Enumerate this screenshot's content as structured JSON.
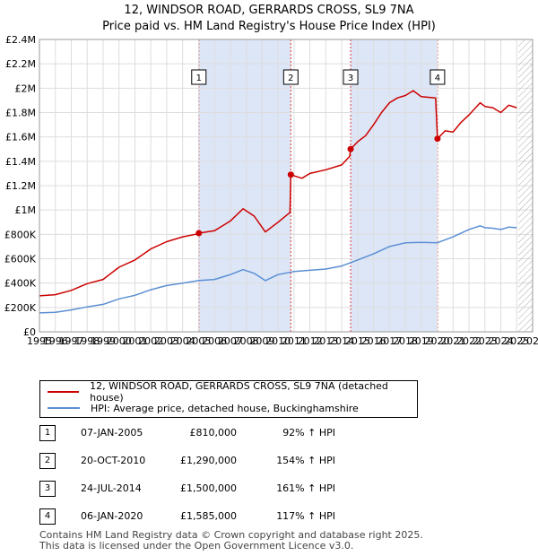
{
  "chart_data": {
    "type": "line",
    "title": "12, WINDSOR ROAD, GERRARDS CROSS, SL9 7NA",
    "subtitle": "Price paid vs. HM Land Registry's House Price Index (HPI)",
    "xlim": [
      1995,
      2026
    ],
    "ylim": [
      0,
      2400000
    ],
    "x_ticks": [
      "1995",
      "1996",
      "1997",
      "1998",
      "1999",
      "2000",
      "2001",
      "2002",
      "2003",
      "2004",
      "2005",
      "2006",
      "2007",
      "2008",
      "2009",
      "2010",
      "2011",
      "2012",
      "2013",
      "2014",
      "2015",
      "2016",
      "2017",
      "2018",
      "2019",
      "2020",
      "2021",
      "2022",
      "2023",
      "2024",
      "2025",
      "2026"
    ],
    "y_ticks": [
      {
        "value": 0,
        "label": "£0"
      },
      {
        "value": 200000,
        "label": "£200K"
      },
      {
        "value": 400000,
        "label": "£400K"
      },
      {
        "value": 600000,
        "label": "£600K"
      },
      {
        "value": 800000,
        "label": "£800K"
      },
      {
        "value": 1000000,
        "label": "£1M"
      },
      {
        "value": 1200000,
        "label": "£1.2M"
      },
      {
        "value": 1400000,
        "label": "£1.4M"
      },
      {
        "value": 1600000,
        "label": "£1.6M"
      },
      {
        "value": 1800000,
        "label": "£1.8M"
      },
      {
        "value": 2000000,
        "label": "£2M"
      },
      {
        "value": 2200000,
        "label": "£2.2M"
      },
      {
        "value": 2400000,
        "label": "£2.4M"
      }
    ],
    "shaded_ranges": [
      [
        2005.02,
        2010.8
      ],
      [
        2014.56,
        2020.02
      ]
    ],
    "hatched_from": 2025.1,
    "series": [
      {
        "name": "12, WINDSOR ROAD, GERRARDS CROSS, SL9 7NA (detached house)",
        "color": "#cc0000",
        "x": [
          1995,
          1996,
          1997,
          1998,
          1999,
          2000,
          2001,
          2002,
          2003,
          2004,
          2004.8,
          2005.02,
          2006,
          2007,
          2007.8,
          2008.5,
          2009.2,
          2010,
          2010.75,
          2010.8,
          2011.5,
          2012,
          2013,
          2014,
          2014.5,
          2014.56,
          2015,
          2015.5,
          2016,
          2016.5,
          2017,
          2017.5,
          2018,
          2018.5,
          2019,
          2019.9,
          2020.02,
          2020.5,
          2021,
          2021.5,
          2022,
          2022.7,
          2023,
          2023.5,
          2024,
          2024.5,
          2025
        ],
        "y": [
          295000,
          305000,
          340000,
          395000,
          430000,
          530000,
          590000,
          680000,
          740000,
          780000,
          800000,
          810000,
          830000,
          910000,
          1010000,
          950000,
          820000,
          900000,
          980000,
          1290000,
          1260000,
          1300000,
          1330000,
          1370000,
          1440000,
          1500000,
          1560000,
          1610000,
          1700000,
          1800000,
          1880000,
          1920000,
          1940000,
          1980000,
          1930000,
          1920000,
          1585000,
          1650000,
          1640000,
          1720000,
          1780000,
          1880000,
          1850000,
          1840000,
          1800000,
          1860000,
          1840000
        ]
      },
      {
        "name": "HPI: Average price, detached house, Buckinghamshire",
        "color": "#5b8fd4",
        "x": [
          1995,
          1996,
          1997,
          1998,
          1999,
          2000,
          2001,
          2002,
          2003,
          2004,
          2005,
          2006,
          2007,
          2007.8,
          2008.5,
          2009.2,
          2010,
          2011,
          2012,
          2013,
          2014,
          2015,
          2016,
          2017,
          2018,
          2019,
          2020,
          2021,
          2022,
          2022.7,
          2023,
          2023.5,
          2024,
          2024.5,
          2025
        ],
        "y": [
          155000,
          160000,
          180000,
          205000,
          225000,
          270000,
          300000,
          345000,
          380000,
          400000,
          420000,
          430000,
          470000,
          510000,
          480000,
          420000,
          470000,
          495000,
          505000,
          515000,
          540000,
          590000,
          640000,
          700000,
          730000,
          735000,
          730000,
          780000,
          840000,
          870000,
          855000,
          850000,
          840000,
          860000,
          855000
        ]
      }
    ],
    "sales": [
      {
        "label": "1",
        "x": 2005.02,
        "y": 810000
      },
      {
        "label": "2",
        "x": 2010.8,
        "y": 1290000
      },
      {
        "label": "3",
        "x": 2014.56,
        "y": 1500000
      },
      {
        "label": "4",
        "x": 2020.02,
        "y": 1585000
      }
    ]
  },
  "legend": {
    "property": "12, WINDSOR ROAD, GERRARDS CROSS, SL9 7NA (detached house)",
    "hpi": "HPI: Average price, detached house, Buckinghamshire"
  },
  "transactions": [
    {
      "num": "1",
      "date": "07-JAN-2005",
      "price": "£810,000",
      "hpi": "92% ↑ HPI"
    },
    {
      "num": "2",
      "date": "20-OCT-2010",
      "price": "£1,290,000",
      "hpi": "154% ↑ HPI"
    },
    {
      "num": "3",
      "date": "24-JUL-2014",
      "price": "£1,500,000",
      "hpi": "161% ↑ HPI"
    },
    {
      "num": "4",
      "date": "06-JAN-2020",
      "price": "£1,585,000",
      "hpi": "117% ↑ HPI"
    }
  ],
  "footer": {
    "line1": "Contains HM Land Registry data © Crown copyright and database right 2025.",
    "line2": "This data is licensed under the Open Government Licence v3.0."
  },
  "colors": {
    "property": "#cc0000",
    "hpi": "#5b8fd4",
    "shade": "#dde6f7",
    "grid": "#dddddd"
  }
}
